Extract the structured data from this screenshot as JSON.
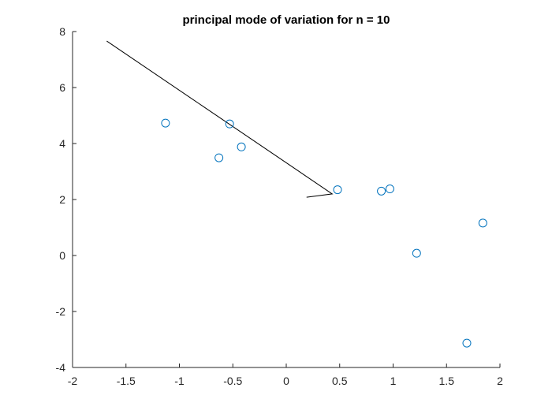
{
  "chart_data": {
    "type": "scatter",
    "title": "principal mode of variation for n = 10",
    "xlabel": "",
    "ylabel": "",
    "xlim": [
      -2,
      2
    ],
    "ylim": [
      -4,
      8
    ],
    "x_ticks": [
      "-2",
      "-1.5",
      "-1",
      "-0.5",
      "0",
      "0.5",
      "1",
      "1.5",
      "2"
    ],
    "y_ticks": [
      "-4",
      "-2",
      "0",
      "2",
      "4",
      "6",
      "8"
    ],
    "grid": false,
    "series": [
      {
        "marker": "circle-open",
        "color": "#0072BD",
        "points": [
          {
            "x": -1.13,
            "y": 4.73
          },
          {
            "x": -0.63,
            "y": 3.49
          },
          {
            "x": -0.53,
            "y": 4.7
          },
          {
            "x": -0.42,
            "y": 3.88
          },
          {
            "x": 0.48,
            "y": 2.35
          },
          {
            "x": 0.89,
            "y": 2.3
          },
          {
            "x": 0.97,
            "y": 2.38
          },
          {
            "x": 1.22,
            "y": 0.08
          },
          {
            "x": 1.69,
            "y": -3.13
          },
          {
            "x": 1.84,
            "y": 1.16
          }
        ]
      }
    ],
    "mode_line": {
      "color": "#000000",
      "points": [
        {
          "x": -1.68,
          "y": 7.66
        },
        {
          "x": 0.43,
          "y": 2.2
        },
        {
          "x": 0.19,
          "y": 2.08
        }
      ]
    }
  }
}
